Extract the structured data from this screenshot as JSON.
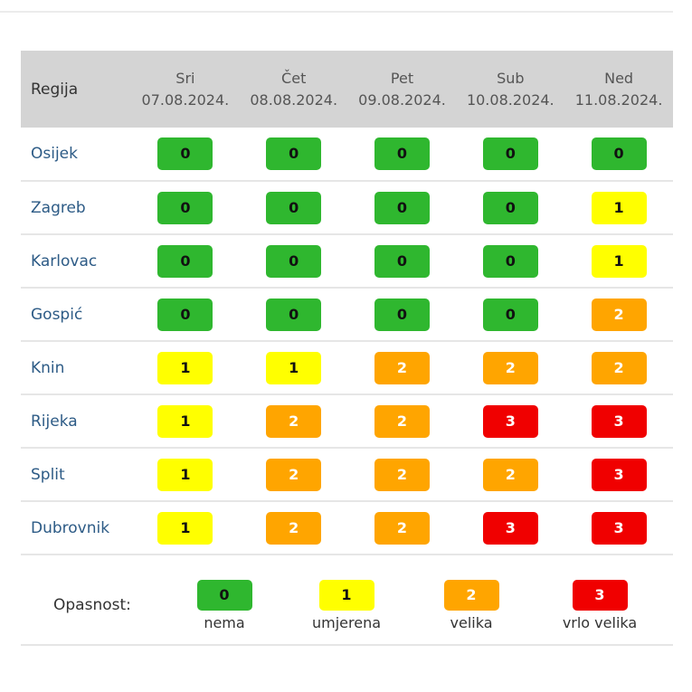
{
  "table": {
    "region_header": "Regija",
    "days": [
      {
        "name": "Sri",
        "date": "07.08.2024."
      },
      {
        "name": "Čet",
        "date": "08.08.2024."
      },
      {
        "name": "Pet",
        "date": "09.08.2024."
      },
      {
        "name": "Sub",
        "date": "10.08.2024."
      },
      {
        "name": "Ned",
        "date": "11.08.2024."
      }
    ],
    "rows": [
      {
        "region": "Osijek",
        "levels": [
          "0",
          "0",
          "0",
          "0",
          "0"
        ]
      },
      {
        "region": "Zagreb",
        "levels": [
          "0",
          "0",
          "0",
          "0",
          "1"
        ]
      },
      {
        "region": "Karlovac",
        "levels": [
          "0",
          "0",
          "0",
          "0",
          "1"
        ]
      },
      {
        "region": "Gospić",
        "levels": [
          "0",
          "0",
          "0",
          "0",
          "2"
        ]
      },
      {
        "region": "Knin",
        "levels": [
          "1",
          "1",
          "2",
          "2",
          "2"
        ]
      },
      {
        "region": "Rijeka",
        "levels": [
          "1",
          "2",
          "2",
          "3",
          "3"
        ]
      },
      {
        "region": "Split",
        "levels": [
          "1",
          "2",
          "2",
          "2",
          "3"
        ]
      },
      {
        "region": "Dubrovnik",
        "levels": [
          "1",
          "2",
          "2",
          "3",
          "3"
        ]
      }
    ]
  },
  "legend": {
    "label": "Opasnost:",
    "items": [
      {
        "level": "0",
        "text": "nema"
      },
      {
        "level": "1",
        "text": "umjerena"
      },
      {
        "level": "2",
        "text": "velika"
      },
      {
        "level": "3",
        "text": "vrlo velika"
      }
    ]
  },
  "colors": {
    "level_0": "#2fb72f",
    "level_1": "#ffff00",
    "level_2": "#ffa500",
    "level_3": "#f00000",
    "header_bg": "#d4d4d4",
    "region_text": "#2d5b86"
  }
}
